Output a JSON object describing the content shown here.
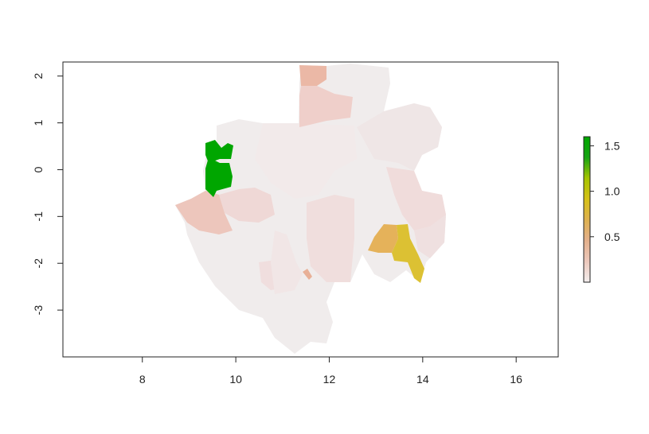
{
  "map": {
    "x_ticks": [
      {
        "value": 8,
        "label": "8"
      },
      {
        "value": 10,
        "label": "10"
      },
      {
        "value": 12,
        "label": "12"
      },
      {
        "value": 14,
        "label": "14"
      },
      {
        "value": 16,
        "label": "16"
      }
    ],
    "y_ticks": [
      {
        "value": 2,
        "label": "2"
      },
      {
        "value": 1,
        "label": "1"
      },
      {
        "value": 0,
        "label": "0"
      },
      {
        "value": -1,
        "label": "-1"
      },
      {
        "value": -2,
        "label": "-2"
      },
      {
        "value": -3,
        "label": "-3"
      }
    ],
    "xlim": [
      6.3,
      16.9
    ],
    "ylim": [
      -4.0,
      2.3
    ],
    "legend": {
      "range": [
        0.0,
        1.6
      ],
      "ticks": [
        {
          "value": 0.5,
          "label": "0.5"
        },
        {
          "value": 1.0,
          "label": "1.0"
        },
        {
          "value": 1.5,
          "label": "1.5"
        }
      ],
      "colors": [
        "#f3eded",
        "#ecc8bc",
        "#e3b08c",
        "#deb150",
        "#d6c117",
        "#a6c400",
        "#16a413",
        "#00a600"
      ]
    }
  }
}
